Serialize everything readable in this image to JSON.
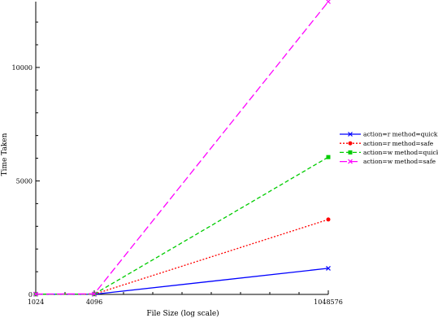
{
  "chart_data": {
    "type": "line",
    "xlabel": "File Size (log scale)",
    "ylabel": "Time Taken",
    "x_scale": "log",
    "x": [
      1024,
      4096,
      1048576
    ],
    "x_tick_labels": [
      "1024",
      "4096",
      "1048576"
    ],
    "y_ticks": [
      0,
      5000,
      10000
    ],
    "y_tick_labels": [
      "0",
      "5000",
      "10000"
    ],
    "ylim": [
      0,
      12900
    ],
    "grid": false,
    "legend_position": "right",
    "series": [
      {
        "name": "action=r method=quick",
        "values": [
          5,
          5,
          1150
        ],
        "color": "#0000ff",
        "dash": "solid",
        "marker": "x"
      },
      {
        "name": "action=r method=safe",
        "values": [
          5,
          10,
          3300
        ],
        "color": "#ff0000",
        "dash": "dotted",
        "marker": "circle"
      },
      {
        "name": "action=w method=quick",
        "values": [
          10,
          15,
          6050
        ],
        "color": "#00cc00",
        "dash": "dashed",
        "marker": "square"
      },
      {
        "name": "action=w method=safe",
        "values": [
          15,
          25,
          12900
        ],
        "color": "#ff00ff",
        "dash": "longdash",
        "marker": "x"
      }
    ]
  }
}
